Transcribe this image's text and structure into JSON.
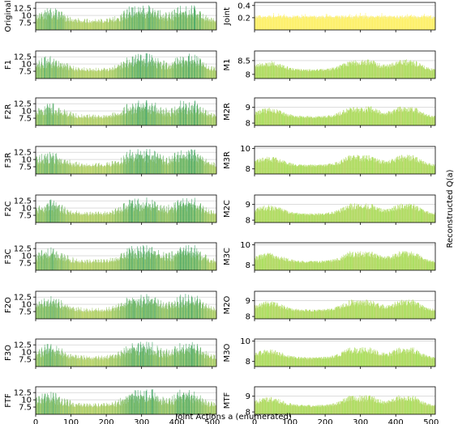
{
  "figure": {
    "xlabel": "Joint Actions a (enumerated)",
    "ylabel": "Reconstructed Q(a)"
  },
  "chart_data": [
    {
      "type": "bar",
      "panel": "left",
      "ylabel": "Original",
      "n_actions": 512,
      "ylim": [
        5.0,
        14.5
      ],
      "yticks": [
        7.5,
        10.0,
        12.5
      ],
      "xticks": [
        0,
        100,
        200,
        300,
        400,
        500
      ],
      "show_xticklabels": false,
      "palette": "yellow-green-teal",
      "grid": "y"
    },
    {
      "type": "bar",
      "panel": "left",
      "ylabel": "F1",
      "n_actions": 512,
      "ylim": [
        5.0,
        14.5
      ],
      "yticks": [
        7.5,
        10.0,
        12.5
      ],
      "xticks": [
        0,
        100,
        200,
        300,
        400,
        500
      ],
      "show_xticklabels": false,
      "palette": "yellow-green-teal",
      "grid": "y"
    },
    {
      "type": "bar",
      "panel": "left",
      "ylabel": "F2R",
      "n_actions": 512,
      "ylim": [
        5.0,
        14.5
      ],
      "yticks": [
        7.5,
        10.0,
        12.5
      ],
      "xticks": [
        0,
        100,
        200,
        300,
        400,
        500
      ],
      "show_xticklabels": false,
      "palette": "yellow-green-teal",
      "grid": "y"
    },
    {
      "type": "bar",
      "panel": "left",
      "ylabel": "F3R",
      "n_actions": 512,
      "ylim": [
        5.0,
        14.5
      ],
      "yticks": [
        7.5,
        10.0,
        12.5
      ],
      "xticks": [
        0,
        100,
        200,
        300,
        400,
        500
      ],
      "show_xticklabels": false,
      "palette": "yellow-green-teal",
      "grid": "y"
    },
    {
      "type": "bar",
      "panel": "left",
      "ylabel": "F2C",
      "n_actions": 512,
      "ylim": [
        5.0,
        14.5
      ],
      "yticks": [
        7.5,
        10.0,
        12.5
      ],
      "xticks": [
        0,
        100,
        200,
        300,
        400,
        500
      ],
      "show_xticklabels": false,
      "palette": "yellow-green-teal",
      "grid": "y"
    },
    {
      "type": "bar",
      "panel": "left",
      "ylabel": "F3C",
      "n_actions": 512,
      "ylim": [
        5.0,
        14.5
      ],
      "yticks": [
        7.5,
        10.0,
        12.5
      ],
      "xticks": [
        0,
        100,
        200,
        300,
        400,
        500
      ],
      "show_xticklabels": false,
      "palette": "yellow-green-teal",
      "grid": "y"
    },
    {
      "type": "bar",
      "panel": "left",
      "ylabel": "F2O",
      "n_actions": 512,
      "ylim": [
        5.0,
        14.5
      ],
      "yticks": [
        7.5,
        10.0,
        12.5
      ],
      "xticks": [
        0,
        100,
        200,
        300,
        400,
        500
      ],
      "show_xticklabels": false,
      "palette": "yellow-green-teal",
      "grid": "y"
    },
    {
      "type": "bar",
      "panel": "left",
      "ylabel": "F3O",
      "n_actions": 512,
      "ylim": [
        5.0,
        14.5
      ],
      "yticks": [
        7.5,
        10.0,
        12.5
      ],
      "xticks": [
        0,
        100,
        200,
        300,
        400,
        500
      ],
      "show_xticklabels": false,
      "palette": "yellow-green-teal",
      "grid": "y"
    },
    {
      "type": "bar",
      "panel": "left",
      "ylabel": "FTF",
      "n_actions": 512,
      "ylim": [
        5.0,
        14.5
      ],
      "yticks": [
        7.5,
        10.0,
        12.5
      ],
      "xticks": [
        0,
        100,
        200,
        300,
        400,
        500
      ],
      "show_xticklabels": true,
      "palette": "yellow-green-teal",
      "grid": "y"
    },
    {
      "type": "bar",
      "panel": "right",
      "ylabel": "Joint",
      "n_actions": 512,
      "ylim": [
        0.0,
        0.45
      ],
      "yticks": [
        0.2,
        0.4
      ],
      "xticks": [
        0,
        100,
        200,
        300,
        400,
        500
      ],
      "show_xticklabels": false,
      "palette": "yellow",
      "grid": "y"
    },
    {
      "type": "bar",
      "panel": "right",
      "ylabel": "M1",
      "n_actions": 512,
      "ylim": [
        7.85,
        8.85
      ],
      "yticks": [
        8.0,
        8.5
      ],
      "xticks": [
        0,
        100,
        200,
        300,
        400,
        500
      ],
      "show_xticklabels": false,
      "palette": "light-green",
      "grid": "y"
    },
    {
      "type": "bar",
      "panel": "right",
      "ylabel": "M2R",
      "n_actions": 512,
      "ylim": [
        7.85,
        9.6
      ],
      "yticks": [
        8,
        9
      ],
      "xticks": [
        0,
        100,
        200,
        300,
        400,
        500
      ],
      "show_xticklabels": false,
      "palette": "light-green",
      "grid": "y"
    },
    {
      "type": "bar",
      "panel": "right",
      "ylabel": "M3R",
      "n_actions": 512,
      "ylim": [
        7.5,
        10.2
      ],
      "yticks": [
        8,
        10
      ],
      "xticks": [
        0,
        100,
        200,
        300,
        400,
        500
      ],
      "show_xticklabels": false,
      "palette": "light-green",
      "grid": "y"
    },
    {
      "type": "bar",
      "panel": "right",
      "ylabel": "M2C",
      "n_actions": 512,
      "ylim": [
        7.85,
        9.6
      ],
      "yticks": [
        8,
        9
      ],
      "xticks": [
        0,
        100,
        200,
        300,
        400,
        500
      ],
      "show_xticklabels": false,
      "palette": "light-green",
      "grid": "y"
    },
    {
      "type": "bar",
      "panel": "right",
      "ylabel": "M3C",
      "n_actions": 512,
      "ylim": [
        7.5,
        10.2
      ],
      "yticks": [
        8,
        10
      ],
      "xticks": [
        0,
        100,
        200,
        300,
        400,
        500
      ],
      "show_xticklabels": false,
      "palette": "light-green",
      "grid": "y"
    },
    {
      "type": "bar",
      "panel": "right",
      "ylabel": "M2O",
      "n_actions": 512,
      "ylim": [
        7.85,
        9.6
      ],
      "yticks": [
        8,
        9
      ],
      "xticks": [
        0,
        100,
        200,
        300,
        400,
        500
      ],
      "show_xticklabels": false,
      "palette": "light-green",
      "grid": "y"
    },
    {
      "type": "bar",
      "panel": "right",
      "ylabel": "M3O",
      "n_actions": 512,
      "ylim": [
        7.5,
        10.2
      ],
      "yticks": [
        8,
        10
      ],
      "xticks": [
        0,
        100,
        200,
        300,
        400,
        500
      ],
      "show_xticklabels": false,
      "palette": "light-green",
      "grid": "y"
    },
    {
      "type": "bar",
      "panel": "right",
      "ylabel": "MTF",
      "n_actions": 512,
      "ylim": [
        7.85,
        9.6
      ],
      "yticks": [
        8,
        9
      ],
      "xticks": [
        0,
        100,
        200,
        300,
        400,
        500
      ],
      "show_xticklabels": true,
      "palette": "light-green",
      "grid": "y"
    }
  ]
}
